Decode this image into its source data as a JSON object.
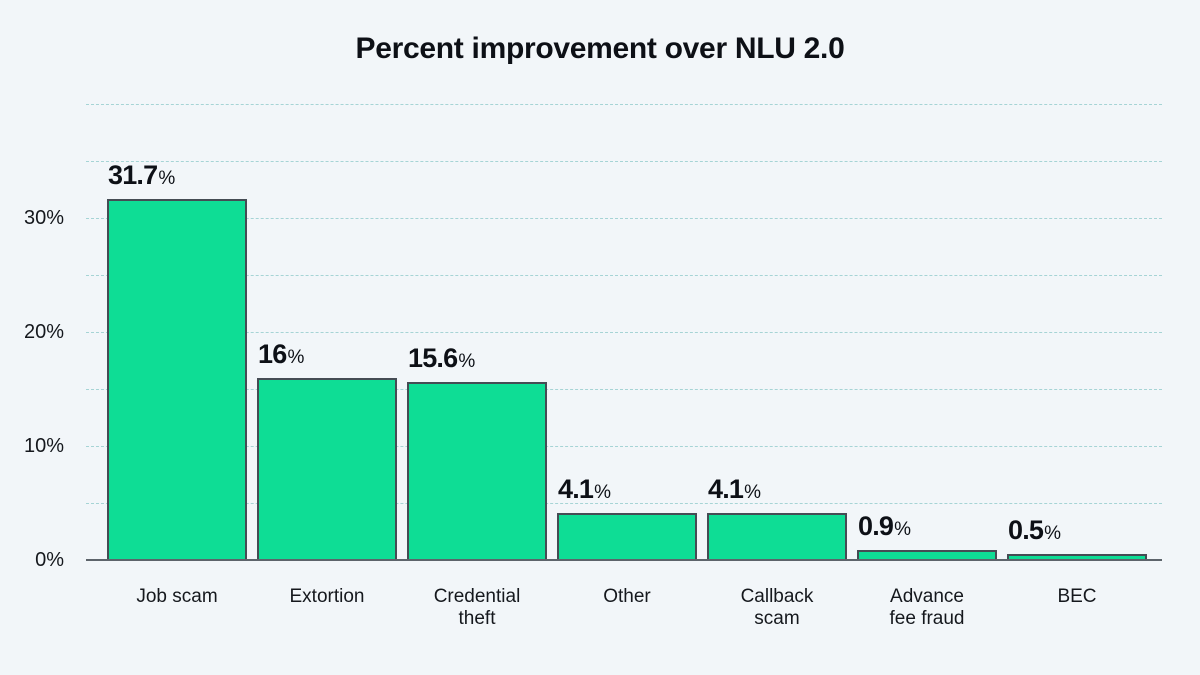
{
  "chart_data": {
    "type": "bar",
    "title": "Percent improvement over NLU 2.0",
    "categories": [
      "Job scam",
      "Extortion",
      "Credential\ntheft",
      "Other",
      "Callback\nscam",
      "Advance\nfee fraud",
      "BEC"
    ],
    "values": [
      31.7,
      16,
      15.6,
      4.1,
      4.1,
      0.9,
      0.5
    ],
    "bar_label_nums": [
      "31.7",
      "16",
      "15.6",
      "4.1",
      "4.1",
      "0.9",
      "0.5"
    ],
    "bar_label_suffix": "%",
    "xlabel": "",
    "ylabel": "",
    "ylim": [
      0,
      40
    ],
    "gridline_values": [
      5,
      10,
      15,
      20,
      25,
      30,
      35,
      40
    ],
    "yticks": [
      {
        "value": 0,
        "label": "0%"
      },
      {
        "value": 10,
        "label": "10%"
      },
      {
        "value": 20,
        "label": "20%"
      },
      {
        "value": 30,
        "label": "30%"
      }
    ],
    "grid": "horizontal-dashed",
    "legend": "none",
    "colors": {
      "background": "#f2f6f9",
      "bar_fill": "#0edd95",
      "bar_border": "#454c54",
      "gridline": "#a6d4d5",
      "baseline": "#5d646b",
      "text": "#0d1016"
    }
  }
}
